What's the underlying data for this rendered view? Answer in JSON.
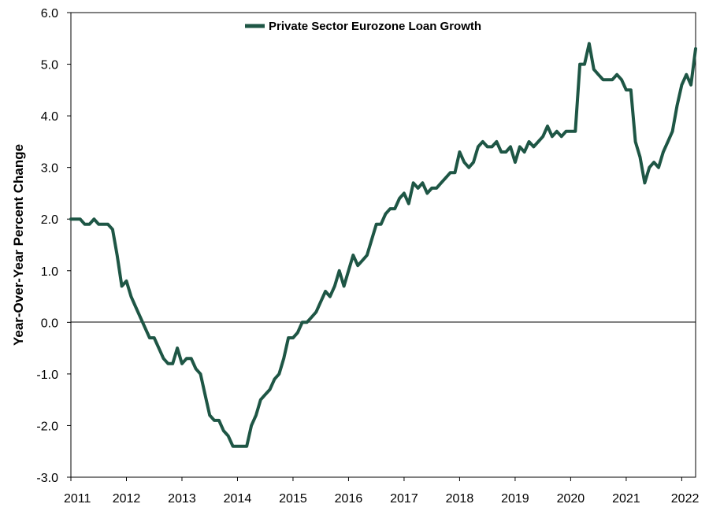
{
  "chart_data": {
    "type": "line",
    "title": "",
    "xlabel": "",
    "ylabel": "Year-Over-Year Percent Change",
    "ylim": [
      -3.0,
      6.0
    ],
    "xlim": [
      "2011-01",
      "2022-04"
    ],
    "y_ticks": [
      "6.0",
      "5.0",
      "4.0",
      "3.0",
      "2.0",
      "1.0",
      "0.0",
      "-1.0",
      "-2.0",
      "-3.0"
    ],
    "x_ticks": [
      "2011",
      "2012",
      "2013",
      "2014",
      "2015",
      "2016",
      "2017",
      "2018",
      "2019",
      "2020",
      "2021",
      "2022"
    ],
    "grid": false,
    "legend": {
      "position": "top-center",
      "entries": [
        "Private Sector Eurozone Loan Growth"
      ]
    },
    "colors": {
      "series": "#1e5645",
      "axis": "#000000"
    },
    "series": [
      {
        "name": "Private Sector Eurozone Loan Growth",
        "points": [
          [
            "2011-01",
            2.0
          ],
          [
            "2011-02",
            2.0
          ],
          [
            "2011-03",
            2.0
          ],
          [
            "2011-04",
            1.9
          ],
          [
            "2011-05",
            1.9
          ],
          [
            "2011-06",
            2.0
          ],
          [
            "2011-07",
            1.9
          ],
          [
            "2011-08",
            1.9
          ],
          [
            "2011-09",
            1.9
          ],
          [
            "2011-10",
            1.8
          ],
          [
            "2011-11",
            1.3
          ],
          [
            "2011-12",
            0.7
          ],
          [
            "2012-01",
            0.8
          ],
          [
            "2012-02",
            0.5
          ],
          [
            "2012-03",
            0.3
          ],
          [
            "2012-04",
            0.1
          ],
          [
            "2012-05",
            -0.1
          ],
          [
            "2012-06",
            -0.3
          ],
          [
            "2012-07",
            -0.3
          ],
          [
            "2012-08",
            -0.5
          ],
          [
            "2012-09",
            -0.7
          ],
          [
            "2012-10",
            -0.8
          ],
          [
            "2012-11",
            -0.8
          ],
          [
            "2012-12",
            -0.5
          ],
          [
            "2013-01",
            -0.8
          ],
          [
            "2013-02",
            -0.7
          ],
          [
            "2013-03",
            -0.7
          ],
          [
            "2013-04",
            -0.9
          ],
          [
            "2013-05",
            -1.0
          ],
          [
            "2013-06",
            -1.4
          ],
          [
            "2013-07",
            -1.8
          ],
          [
            "2013-08",
            -1.9
          ],
          [
            "2013-09",
            -1.9
          ],
          [
            "2013-10",
            -2.1
          ],
          [
            "2013-11",
            -2.2
          ],
          [
            "2013-12",
            -2.4
          ],
          [
            "2014-01",
            -2.4
          ],
          [
            "2014-02",
            -2.4
          ],
          [
            "2014-03",
            -2.4
          ],
          [
            "2014-04",
            -2.0
          ],
          [
            "2014-05",
            -1.8
          ],
          [
            "2014-06",
            -1.5
          ],
          [
            "2014-07",
            -1.4
          ],
          [
            "2014-08",
            -1.3
          ],
          [
            "2014-09",
            -1.1
          ],
          [
            "2014-10",
            -1.0
          ],
          [
            "2014-11",
            -0.7
          ],
          [
            "2014-12",
            -0.3
          ],
          [
            "2015-01",
            -0.3
          ],
          [
            "2015-02",
            -0.2
          ],
          [
            "2015-03",
            0.0
          ],
          [
            "2015-04",
            0.0
          ],
          [
            "2015-05",
            0.1
          ],
          [
            "2015-06",
            0.2
          ],
          [
            "2015-07",
            0.4
          ],
          [
            "2015-08",
            0.6
          ],
          [
            "2015-09",
            0.5
          ],
          [
            "2015-10",
            0.7
          ],
          [
            "2015-11",
            1.0
          ],
          [
            "2015-12",
            0.7
          ],
          [
            "2016-01",
            1.0
          ],
          [
            "2016-02",
            1.3
          ],
          [
            "2016-03",
            1.1
          ],
          [
            "2016-04",
            1.2
          ],
          [
            "2016-05",
            1.3
          ],
          [
            "2016-06",
            1.6
          ],
          [
            "2016-07",
            1.9
          ],
          [
            "2016-08",
            1.9
          ],
          [
            "2016-09",
            2.1
          ],
          [
            "2016-10",
            2.2
          ],
          [
            "2016-11",
            2.2
          ],
          [
            "2016-12",
            2.4
          ],
          [
            "2017-01",
            2.5
          ],
          [
            "2017-02",
            2.3
          ],
          [
            "2017-03",
            2.7
          ],
          [
            "2017-04",
            2.6
          ],
          [
            "2017-05",
            2.7
          ],
          [
            "2017-06",
            2.5
          ],
          [
            "2017-07",
            2.6
          ],
          [
            "2017-08",
            2.6
          ],
          [
            "2017-09",
            2.7
          ],
          [
            "2017-10",
            2.8
          ],
          [
            "2017-11",
            2.9
          ],
          [
            "2017-12",
            2.9
          ],
          [
            "2018-01",
            3.3
          ],
          [
            "2018-02",
            3.1
          ],
          [
            "2018-03",
            3.0
          ],
          [
            "2018-04",
            3.1
          ],
          [
            "2018-05",
            3.4
          ],
          [
            "2018-06",
            3.5
          ],
          [
            "2018-07",
            3.4
          ],
          [
            "2018-08",
            3.4
          ],
          [
            "2018-09",
            3.5
          ],
          [
            "2018-10",
            3.3
          ],
          [
            "2018-11",
            3.3
          ],
          [
            "2018-12",
            3.4
          ],
          [
            "2019-01",
            3.1
          ],
          [
            "2019-02",
            3.4
          ],
          [
            "2019-03",
            3.3
          ],
          [
            "2019-04",
            3.5
          ],
          [
            "2019-05",
            3.4
          ],
          [
            "2019-06",
            3.5
          ],
          [
            "2019-07",
            3.6
          ],
          [
            "2019-08",
            3.8
          ],
          [
            "2019-09",
            3.6
          ],
          [
            "2019-10",
            3.7
          ],
          [
            "2019-11",
            3.6
          ],
          [
            "2019-12",
            3.7
          ],
          [
            "2020-01",
            3.7
          ],
          [
            "2020-02",
            3.7
          ],
          [
            "2020-03",
            5.0
          ],
          [
            "2020-04",
            5.0
          ],
          [
            "2020-05",
            5.4
          ],
          [
            "2020-06",
            4.9
          ],
          [
            "2020-07",
            4.8
          ],
          [
            "2020-08",
            4.7
          ],
          [
            "2020-09",
            4.7
          ],
          [
            "2020-10",
            4.7
          ],
          [
            "2020-11",
            4.8
          ],
          [
            "2020-12",
            4.7
          ],
          [
            "2021-01",
            4.5
          ],
          [
            "2021-02",
            4.5
          ],
          [
            "2021-03",
            3.5
          ],
          [
            "2021-04",
            3.2
          ],
          [
            "2021-05",
            2.7
          ],
          [
            "2021-06",
            3.0
          ],
          [
            "2021-07",
            3.1
          ],
          [
            "2021-08",
            3.0
          ],
          [
            "2021-09",
            3.3
          ],
          [
            "2021-10",
            3.5
          ],
          [
            "2021-11",
            3.7
          ],
          [
            "2021-12",
            4.2
          ],
          [
            "2022-01",
            4.6
          ],
          [
            "2022-02",
            4.8
          ],
          [
            "2022-03",
            4.6
          ],
          [
            "2022-04",
            5.3
          ]
        ]
      }
    ]
  }
}
